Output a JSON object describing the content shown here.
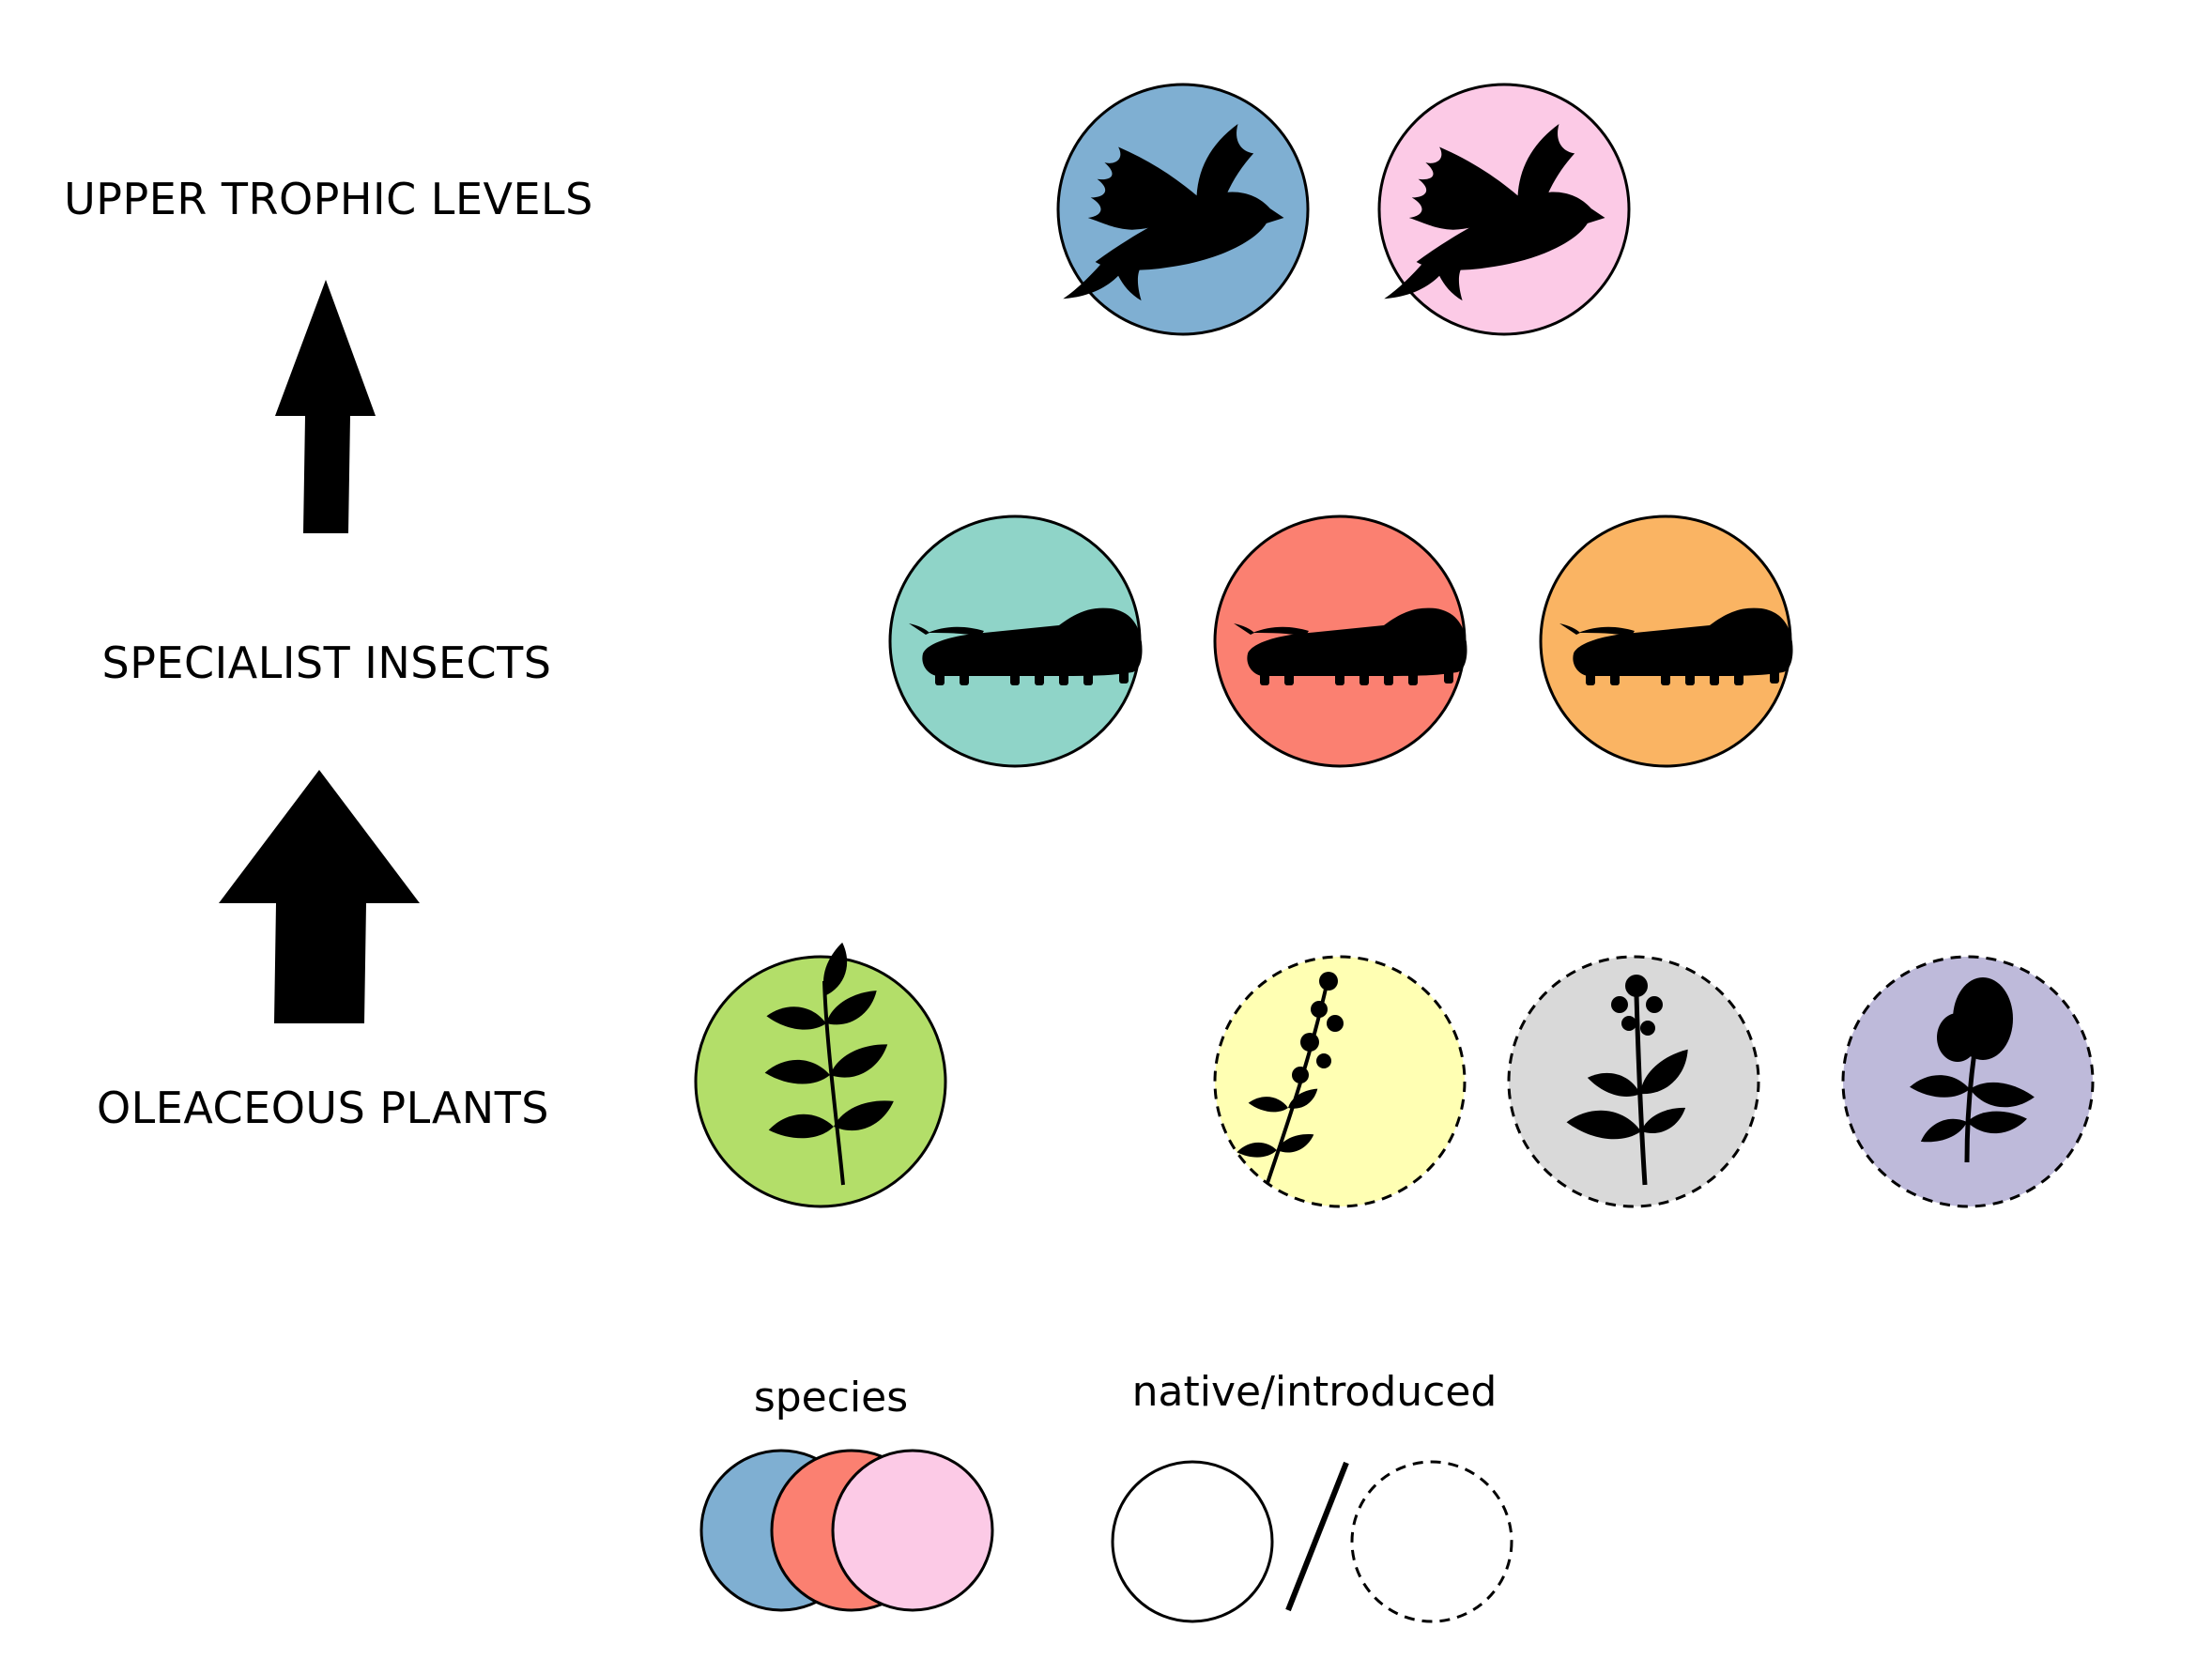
{
  "levels": {
    "upper": "UPPER TROPHIC LEVELS",
    "insects": "SPECIALIST INSECTS",
    "plants": "OLEACEOUS PLANTS"
  },
  "legend": {
    "species": "species",
    "status": "native/introduced"
  },
  "colors": {
    "bird_blue": "#7fafd2",
    "bird_pink": "#fccae6",
    "insect_teal": "#8fd4c8",
    "insect_red": "#fb8071",
    "insect_orange": "#fab463",
    "plant_green": "#b3de69",
    "plant_yellow": "#ffffb3",
    "plant_gray": "#d9d9d9",
    "plant_purple": "#bebada"
  },
  "icons": {
    "upper": [
      "bird-silhouette-icon",
      "bird-silhouette-icon"
    ],
    "insects": [
      "caterpillar-silhouette-icon",
      "caterpillar-silhouette-icon",
      "caterpillar-silhouette-icon"
    ],
    "plants": [
      "ash-leaf-silhouette-icon",
      "forsythia-silhouette-icon",
      "jasmine-silhouette-icon",
      "lilac-silhouette-icon"
    ]
  },
  "plant_status": [
    "native",
    "introduced",
    "introduced",
    "introduced"
  ]
}
